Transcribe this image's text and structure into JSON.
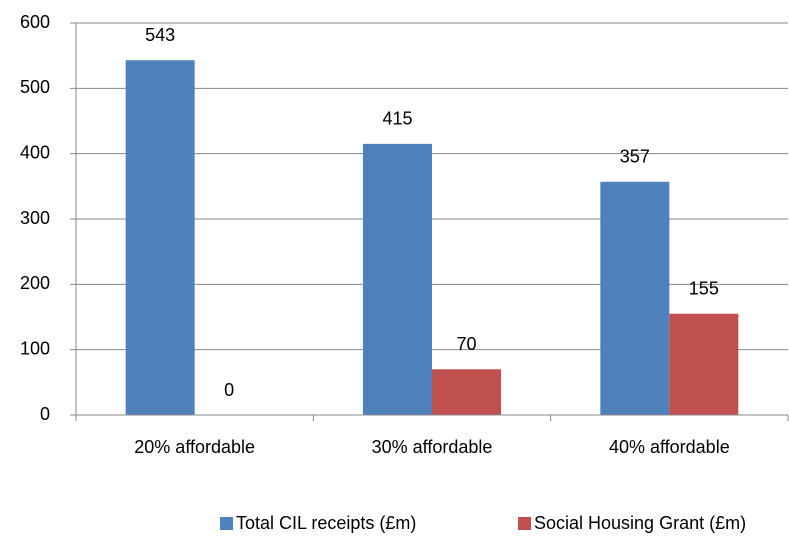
{
  "chart_data": {
    "type": "bar",
    "categories": [
      "20% affordable",
      "30% affordable",
      "40% affordable"
    ],
    "series": [
      {
        "name": "Total CIL receipts (£m)",
        "color": "#4f81bd",
        "values": [
          543,
          415,
          357
        ]
      },
      {
        "name": "Social Housing Grant (£m)",
        "color": "#c0504d",
        "values": [
          0,
          70,
          155
        ]
      }
    ],
    "ylim": [
      0,
      600
    ],
    "yticks": [
      0,
      100,
      200,
      300,
      400,
      500,
      600
    ],
    "grid": true,
    "legend": "bottom"
  }
}
